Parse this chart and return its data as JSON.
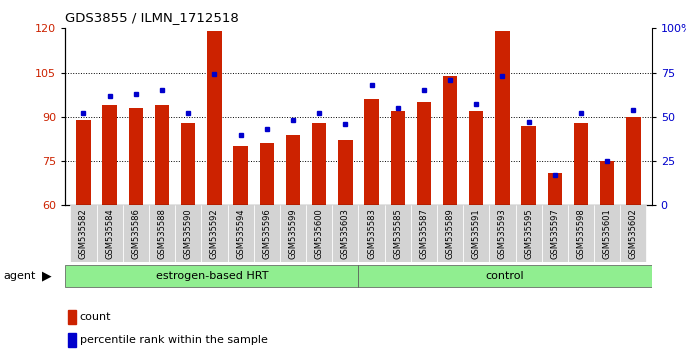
{
  "title": "GDS3855 / ILMN_1712518",
  "categories": [
    "GSM535582",
    "GSM535584",
    "GSM535586",
    "GSM535588",
    "GSM535590",
    "GSM535592",
    "GSM535594",
    "GSM535596",
    "GSM535599",
    "GSM535600",
    "GSM535603",
    "GSM535583",
    "GSM535585",
    "GSM535587",
    "GSM535589",
    "GSM535591",
    "GSM535593",
    "GSM535595",
    "GSM535597",
    "GSM535598",
    "GSM535601",
    "GSM535602"
  ],
  "counts": [
    89,
    94,
    93,
    94,
    88,
    119,
    80,
    81,
    84,
    88,
    82,
    96,
    92,
    95,
    104,
    92,
    119,
    87,
    71,
    88,
    75,
    90
  ],
  "percentiles": [
    52,
    62,
    63,
    65,
    52,
    74,
    40,
    43,
    48,
    52,
    46,
    68,
    55,
    65,
    71,
    57,
    73,
    47,
    17,
    52,
    25,
    54
  ],
  "group1_label": "estrogen-based HRT",
  "group2_label": "control",
  "group1_count": 11,
  "group2_count": 11,
  "ylim_left": [
    60,
    120
  ],
  "ylim_right": [
    0,
    100
  ],
  "yticks_left": [
    60,
    75,
    90,
    105,
    120
  ],
  "yticks_right": [
    0,
    25,
    50,
    75,
    100
  ],
  "bar_color": "#CC2200",
  "dot_color": "#0000CC",
  "plot_bg_color": "#FFFFFF",
  "group_bg_color": "#90EE90",
  "tick_bg_color": "#D3D3D3",
  "legend_count_label": "count",
  "legend_pct_label": "percentile rank within the sample",
  "agent_label": "agent"
}
